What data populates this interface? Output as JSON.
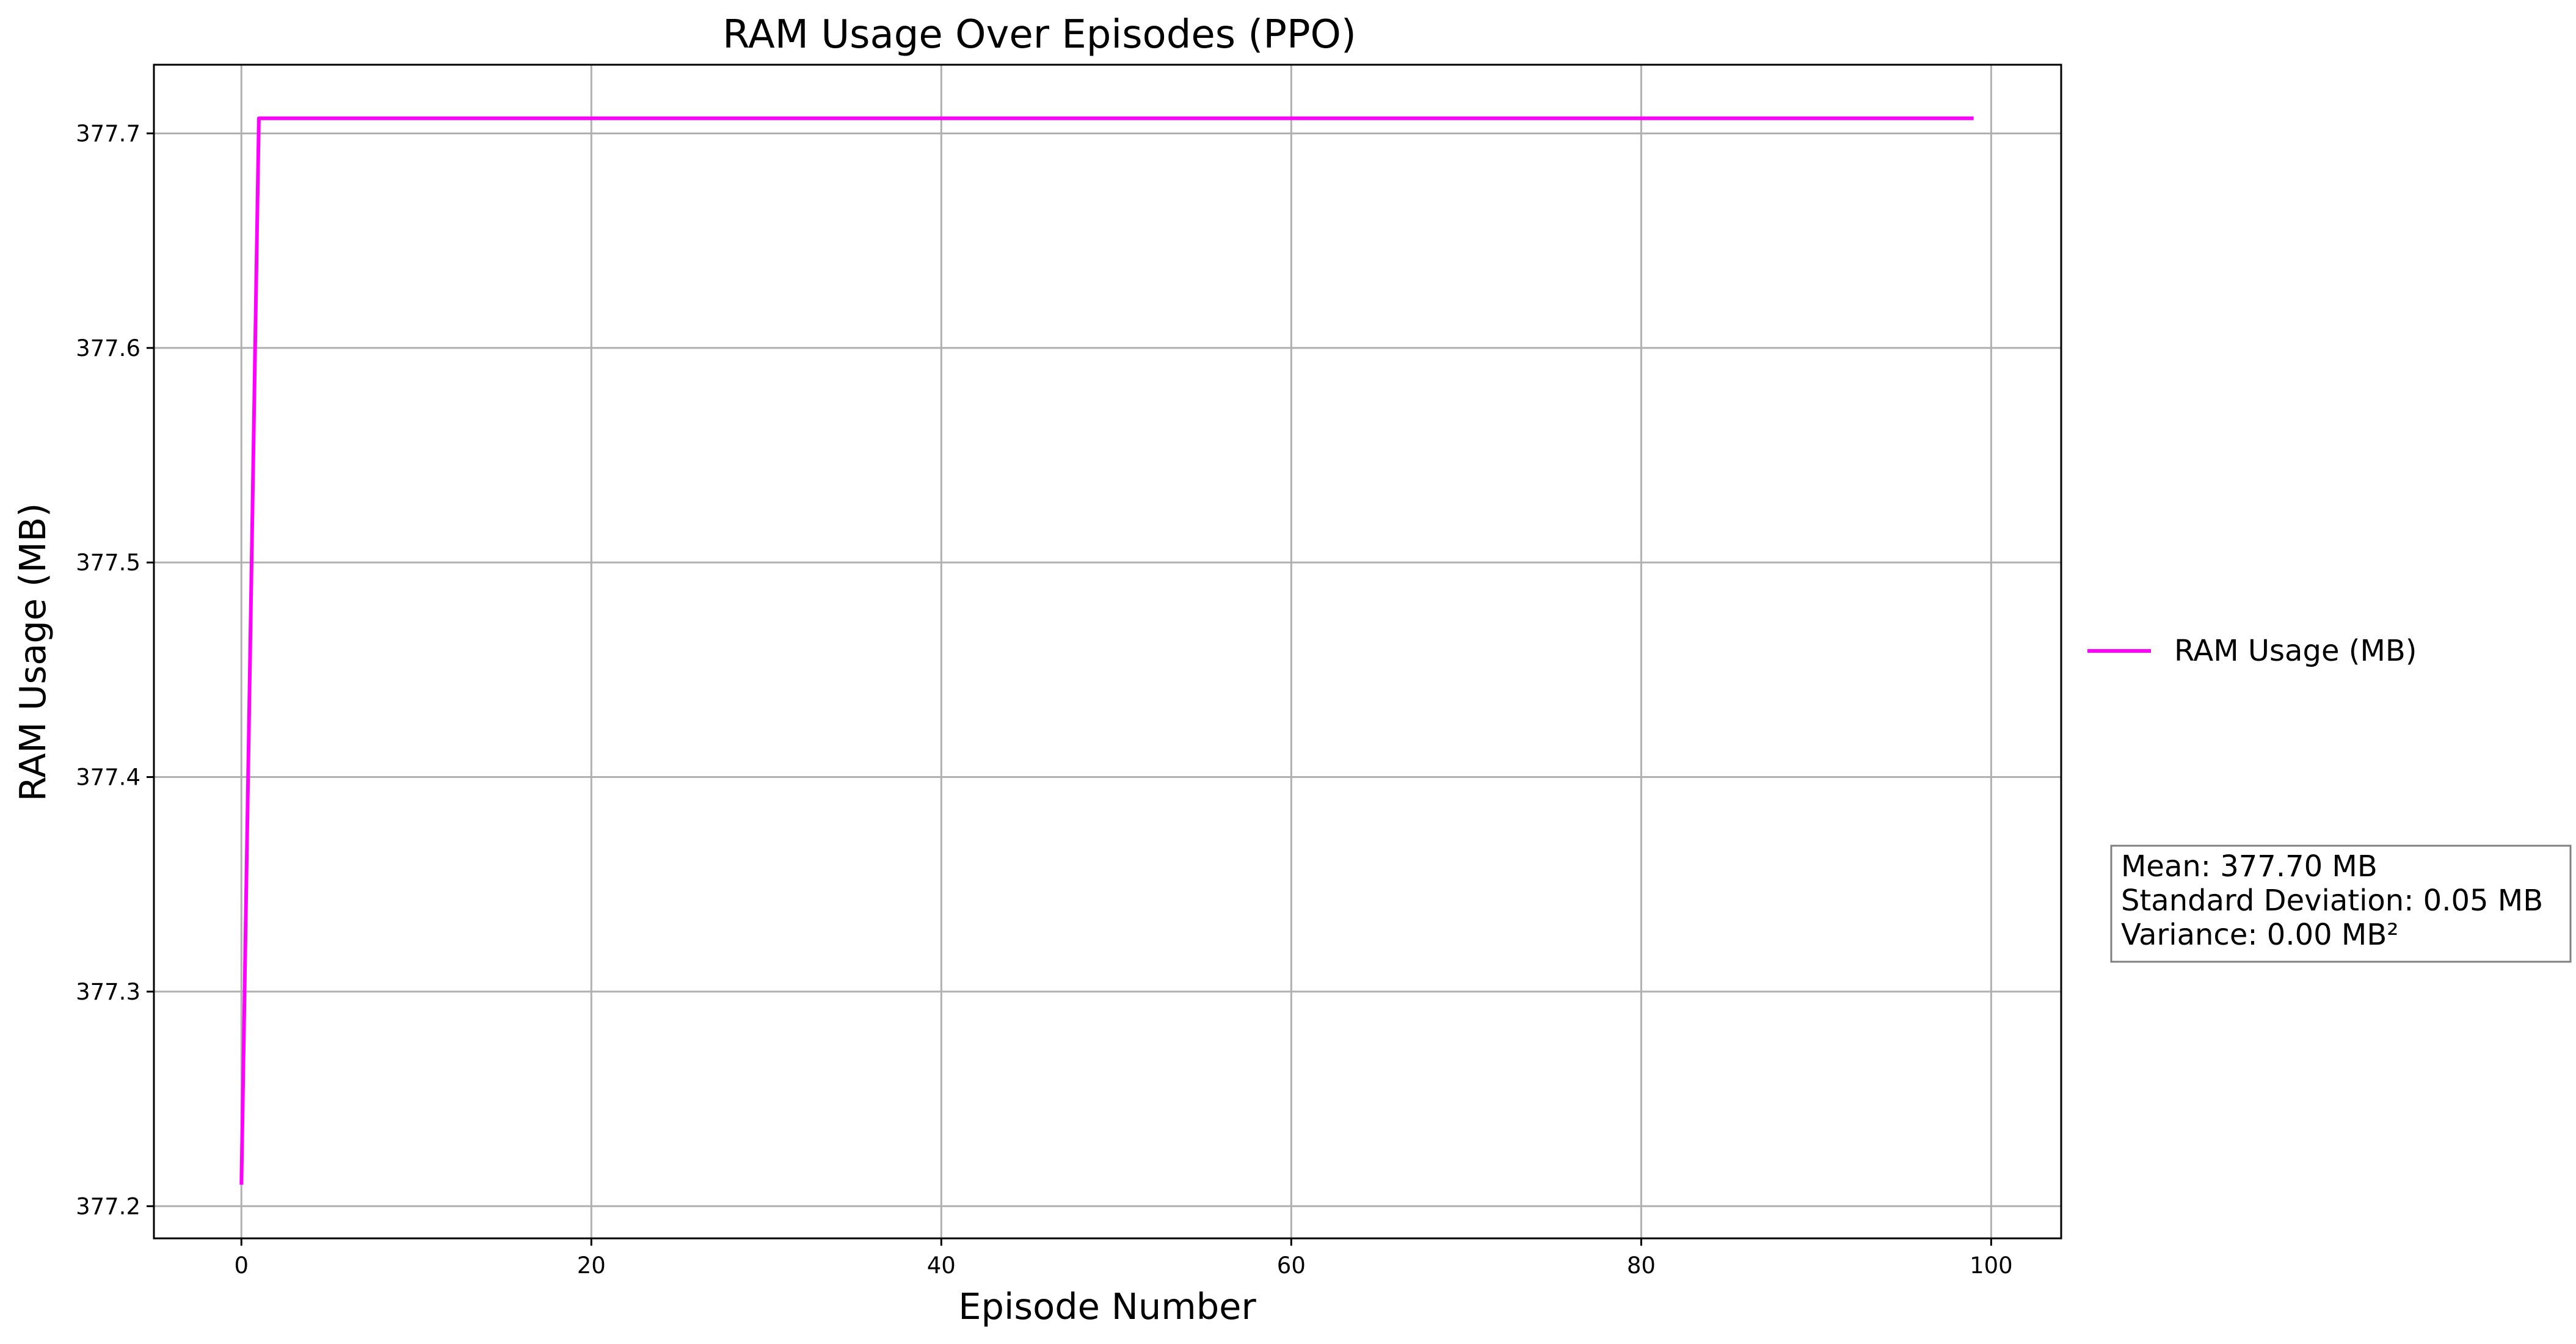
{
  "chart_data": {
    "type": "line",
    "title": "RAM Usage Over Episodes (PPO)",
    "xlabel": "Episode Number",
    "ylabel": "RAM Usage (MB)",
    "xlim": [
      -5,
      104
    ],
    "ylim": [
      377.185,
      377.732
    ],
    "xticks": [
      0,
      20,
      40,
      60,
      80,
      100
    ],
    "yticks": [
      377.2,
      377.3,
      377.4,
      377.5,
      377.6,
      377.7
    ],
    "xtick_labels": [
      "0",
      "20",
      "40",
      "60",
      "80",
      "100"
    ],
    "ytick_labels": [
      "377.2",
      "377.3",
      "377.4",
      "377.5",
      "377.6",
      "377.7"
    ],
    "grid": true,
    "legend_position": "center-right, outside plot area",
    "series": [
      {
        "name": "RAM Usage (MB)",
        "color": "#ff00ff",
        "x": [
          0,
          1,
          99
        ],
        "y": [
          377.21,
          377.707,
          377.707
        ]
      }
    ],
    "stats_box": {
      "lines": [
        "Mean: 377.70 MB",
        "Standard Deviation: 0.05 MB",
        "Variance: 0.00 MB²"
      ]
    }
  }
}
